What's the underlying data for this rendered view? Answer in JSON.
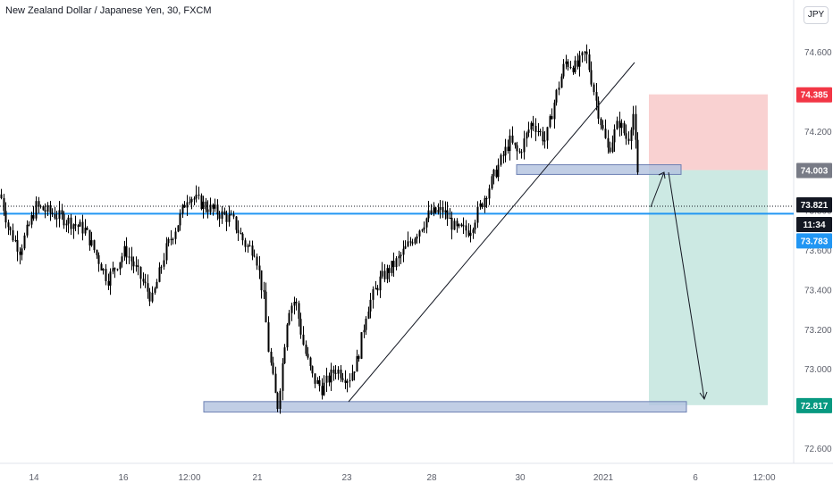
{
  "header": {
    "title": "New Zealand Dollar / Japanese Yen, 30, FXCM",
    "currency_badge": "JPY"
  },
  "colors": {
    "candle": "#000000",
    "support_line": "#2196f3",
    "zone_fill": "#b2c2df",
    "zone_stroke": "#6d80b3",
    "stop_zone": "#f9d1d1",
    "target_zone": "#cce9e3",
    "tag_red": "#f23645",
    "tag_gray": "#787b86",
    "tag_black": "#131722",
    "tag_blue": "#2196f3",
    "tag_green": "#089981"
  },
  "chart_data": {
    "type": "candlestick",
    "symbol": "NZDJPY",
    "timeframe": "30",
    "source": "FXCM",
    "x_labels": [
      "14",
      "16",
      "12:00",
      "21",
      "23",
      "28",
      "30",
      "2021",
      "6",
      "12:00"
    ],
    "y_ticks": [
      "74.600",
      "74.400",
      "74.200",
      "74.000",
      "73.800",
      "73.600",
      "73.400",
      "73.200",
      "73.000",
      "72.800",
      "72.600"
    ],
    "ylim": [
      72.55,
      74.7
    ],
    "price_path": [
      [
        0,
        73.88
      ],
      [
        10,
        73.7
      ],
      [
        22,
        73.6
      ],
      [
        40,
        73.82
      ],
      [
        60,
        73.78
      ],
      [
        75,
        73.75
      ],
      [
        95,
        73.7
      ],
      [
        120,
        73.45
      ],
      [
        140,
        73.6
      ],
      [
        170,
        73.35
      ],
      [
        185,
        73.6
      ],
      [
        200,
        73.75
      ],
      [
        210,
        73.88
      ],
      [
        230,
        73.82
      ],
      [
        260,
        73.75
      ],
      [
        275,
        73.62
      ],
      [
        285,
        73.6
      ],
      [
        295,
        73.35
      ],
      [
        300,
        73.1
      ],
      [
        310,
        72.8
      ],
      [
        315,
        73.0
      ],
      [
        322,
        73.3
      ],
      [
        330,
        73.35
      ],
      [
        340,
        73.1
      ],
      [
        350,
        72.95
      ],
      [
        360,
        72.9
      ],
      [
        375,
        73.0
      ],
      [
        390,
        72.95
      ],
      [
        400,
        73.05
      ],
      [
        410,
        73.3
      ],
      [
        425,
        73.45
      ],
      [
        445,
        73.55
      ],
      [
        460,
        73.65
      ],
      [
        480,
        73.78
      ],
      [
        495,
        73.8
      ],
      [
        510,
        73.7
      ],
      [
        525,
        73.7
      ],
      [
        540,
        73.85
      ],
      [
        555,
        74.0
      ],
      [
        570,
        74.15
      ],
      [
        580,
        74.08
      ],
      [
        595,
        74.25
      ],
      [
        610,
        74.15
      ],
      [
        620,
        74.35
      ],
      [
        632,
        74.55
      ],
      [
        645,
        74.52
      ],
      [
        655,
        74.6
      ],
      [
        662,
        74.45
      ],
      [
        670,
        74.28
      ],
      [
        680,
        74.1
      ],
      [
        692,
        74.25
      ],
      [
        702,
        74.15
      ],
      [
        708,
        74.3
      ],
      [
        712,
        74.05
      ],
      [
        716,
        73.82
      ]
    ],
    "annotations": {
      "price_tags": [
        {
          "value": 74.385,
          "label": "74.385",
          "role": "stop_loss"
        },
        {
          "value": 74.003,
          "label": "74.003",
          "role": "entry"
        },
        {
          "value": 73.821,
          "label": "73.821",
          "role": "last_price"
        },
        {
          "value": 73.783,
          "label": "73.783",
          "role": "support"
        },
        {
          "value": 72.817,
          "label": "72.817",
          "role": "take_profit"
        }
      ],
      "countdown": "11:34",
      "support_level": 73.783,
      "last_price": 73.821,
      "zones": [
        {
          "name": "demand-zone",
          "y_top": 72.835,
          "y_bottom": 72.8,
          "x_from_label": "12:00",
          "x_to_label": "6"
        },
        {
          "name": "resistance-zone",
          "y_top": 74.03,
          "y_bottom": 73.99,
          "x_from_label": "30",
          "x_to_label": "2021"
        }
      ],
      "position": {
        "side": "short",
        "entry": 74.003,
        "stop": 74.385,
        "target": 72.817
      },
      "trendline": {
        "from": {
          "price": 72.83
        },
        "to": {
          "price": 74.55
        }
      }
    }
  }
}
